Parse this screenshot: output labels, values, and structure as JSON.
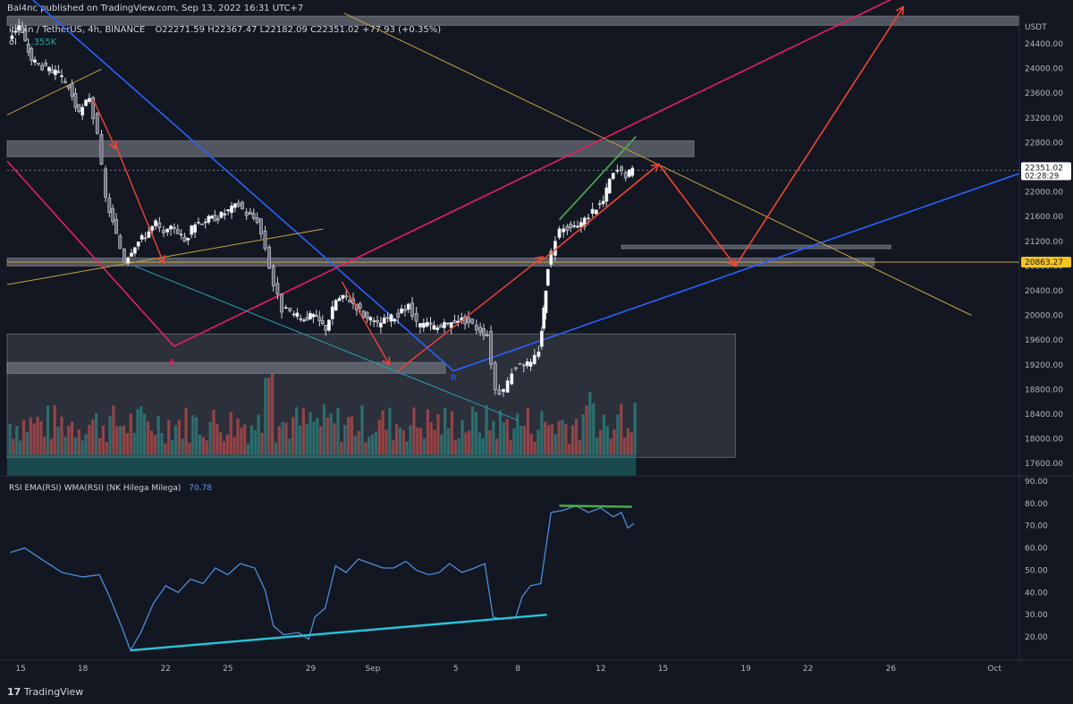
{
  "header": {
    "published_by": "Bal4nc published on TradingView.com, Sep 13, 2022 16:31 UTC+7"
  },
  "legend": {
    "symbol": "itcoin / TetherUS, 4h, BINANCE",
    "ohlc": "O22271.59  H22367.47  L22182.09  C22351.02  +77.93 (+0.35%)",
    "vol_label": "ol",
    "vol_value": "1.355K"
  },
  "rsi_label": {
    "name": "RSI EMA(RSI) WMA(RSI) (NK Hilega Milega)",
    "value": "70.78"
  },
  "footer": {
    "logo": "TradingView"
  },
  "colors": {
    "background": "#131722",
    "up": "#26a69a",
    "down": "#ef5350",
    "blue_trend": "#2962ff",
    "pink_channel": "#e91e63",
    "orange_line": "#c8a13c",
    "red_projection": "#f44336",
    "green_div": "#4caf50",
    "cyan_div": "#26c6da",
    "rsi_line": "#4a8fd8"
  },
  "chart_data": {
    "type": "candlestick",
    "symbol": "BTCUSDT",
    "timeframe": "4h",
    "exchange": "BINANCE",
    "currency_label": "USDT",
    "price_ylim": [
      17400,
      24850
    ],
    "price_ticks": [
      24400,
      24000,
      23600,
      23200,
      22800,
      22400,
      22000,
      21600,
      21200,
      20800,
      20400,
      20000,
      19600,
      19200,
      18800,
      18400,
      18000,
      17600
    ],
    "x_tick_labels": [
      "15",
      "18",
      "22",
      "25",
      "29",
      "Sep",
      "5",
      "8",
      "12",
      "15",
      "19",
      "22",
      "26",
      "Oct"
    ],
    "x_tick_days": [
      15,
      18,
      22,
      25,
      29,
      32,
      36,
      39,
      43,
      46,
      50,
      53,
      57,
      62
    ],
    "x_range_days": [
      14.35,
      63.2
    ],
    "last_price": {
      "value": "22351.02",
      "countdown": "02:28:29"
    },
    "horizontal_line": {
      "value": 20863.27,
      "label": "20863.27"
    },
    "price_path": [
      [
        14.5,
        24500
      ],
      [
        15.0,
        24700
      ],
      [
        15.6,
        24150
      ],
      [
        16.3,
        24000
      ],
      [
        16.9,
        23900
      ],
      [
        17.4,
        23700
      ],
      [
        17.9,
        23250
      ],
      [
        18.4,
        23550
      ],
      [
        18.8,
        22900
      ],
      [
        19.2,
        21900
      ],
      [
        19.7,
        21300
      ],
      [
        20.1,
        20900
      ],
      [
        20.6,
        21150
      ],
      [
        21.1,
        21300
      ],
      [
        21.6,
        21500
      ],
      [
        22.0,
        21300
      ],
      [
        22.5,
        21450
      ],
      [
        23.0,
        21200
      ],
      [
        23.5,
        21500
      ],
      [
        24.0,
        21550
      ],
      [
        24.6,
        21600
      ],
      [
        25.1,
        21700
      ],
      [
        25.6,
        21800
      ],
      [
        26.0,
        21650
      ],
      [
        26.5,
        21550
      ],
      [
        26.9,
        21100
      ],
      [
        27.3,
        20500
      ],
      [
        27.7,
        20100
      ],
      [
        28.1,
        20050
      ],
      [
        28.6,
        19950
      ],
      [
        29.2,
        20000
      ],
      [
        29.8,
        19800
      ],
      [
        30.3,
        20250
      ],
      [
        30.8,
        20300
      ],
      [
        31.3,
        20150
      ],
      [
        31.8,
        19950
      ],
      [
        32.3,
        19850
      ],
      [
        32.8,
        19950
      ],
      [
        33.3,
        20000
      ],
      [
        33.8,
        20150
      ],
      [
        34.2,
        19850
      ],
      [
        34.7,
        19850
      ],
      [
        35.2,
        19800
      ],
      [
        35.7,
        19850
      ],
      [
        36.2,
        19950
      ],
      [
        36.7,
        19900
      ],
      [
        37.1,
        19800
      ],
      [
        37.6,
        19700
      ],
      [
        38.0,
        18800
      ],
      [
        38.4,
        18750
      ],
      [
        38.8,
        19100
      ],
      [
        39.2,
        19250
      ],
      [
        39.7,
        19200
      ],
      [
        40.1,
        19450
      ],
      [
        40.3,
        20100
      ],
      [
        40.5,
        20800
      ],
      [
        40.9,
        21250
      ],
      [
        41.3,
        21450
      ],
      [
        41.8,
        21400
      ],
      [
        42.3,
        21550
      ],
      [
        42.7,
        21700
      ],
      [
        43.2,
        21850
      ],
      [
        43.5,
        22200
      ],
      [
        43.9,
        22350
      ],
      [
        44.3,
        22280
      ],
      [
        44.6,
        22351
      ]
    ],
    "volume": {
      "max": 3.2,
      "bars_description": "volume histogram overlaid at bottom of price pane"
    },
    "zones": [
      {
        "name": "resistance-zone",
        "y": [
          22570,
          22830
        ],
        "x": [
          14.35,
          47.5
        ]
      },
      {
        "name": "support-zone",
        "y": [
          20800,
          20930
        ],
        "x": [
          14.35,
          56.2
        ]
      },
      {
        "name": "thin-zone",
        "y": [
          21080,
          21140
        ],
        "x": [
          44.0,
          57.0
        ]
      },
      {
        "name": "lower-zone",
        "y": [
          19060,
          19240
        ],
        "x": [
          14.35,
          35.5
        ]
      },
      {
        "name": "demand-zone",
        "y": [
          17700,
          19700
        ],
        "x": [
          14.35,
          49.5
        ]
      },
      {
        "name": "top-zone",
        "y": [
          24700,
          24850
        ],
        "x": [
          14.35,
          63.2
        ]
      }
    ],
    "trend_lines": [
      {
        "name": "blue-downtrend",
        "points": [
          [
            15.3,
            25200
          ],
          [
            35.9,
            19100
          ]
        ]
      },
      {
        "name": "blue-uptrend",
        "points": [
          [
            35.9,
            19100
          ],
          [
            63.2,
            22300
          ]
        ]
      },
      {
        "name": "pink-channel-upper",
        "points": [
          [
            22.4,
            19500
          ],
          [
            57.5,
            25200
          ]
        ]
      },
      {
        "name": "pink-channel-lower",
        "points": [
          [
            14.35,
            22500
          ],
          [
            22.4,
            19500
          ]
        ]
      },
      {
        "name": "orange-long-line",
        "points": [
          [
            30.6,
            24900
          ],
          [
            60.9,
            20000
          ]
        ]
      },
      {
        "name": "orange-short-upper",
        "points": [
          [
            14.35,
            23250
          ],
          [
            18.9,
            23990
          ]
        ]
      },
      {
        "name": "orange-short-lower",
        "points": [
          [
            14.35,
            20500
          ],
          [
            29.6,
            21400
          ]
        ]
      },
      {
        "name": "cyan-lower-line",
        "points": [
          [
            20.5,
            20800
          ],
          [
            39.0,
            18300
          ]
        ]
      },
      {
        "name": "green-divergence-price",
        "points": [
          [
            41.0,
            21550
          ],
          [
            44.7,
            22900
          ]
        ]
      }
    ],
    "projection_path": [
      [
        40.2,
        20900
      ],
      [
        45.8,
        22450
      ],
      [
        49.5,
        20800
      ],
      [
        57.6,
        25000
      ]
    ],
    "small_arrows": [
      {
        "from": [
          18.5,
          23500
        ],
        "to": [
          19.6,
          22700
        ]
      },
      {
        "from": [
          19.6,
          22750
        ],
        "to": [
          21.9,
          20850
        ]
      },
      {
        "from": [
          30.5,
          20550
        ],
        "to": [
          32.8,
          19200
        ]
      },
      {
        "from": [
          33.2,
          19100
        ],
        "to": [
          40.2,
          20950
        ]
      }
    ],
    "labels": [
      {
        "text": "B",
        "day": 22.3,
        "value": 19200,
        "color": "#e91e63"
      },
      {
        "text": "B",
        "day": 35.9,
        "value": 18950,
        "color": "#2962ff"
      }
    ],
    "rsi": {
      "ylim": [
        12,
        90
      ],
      "ticks": [
        90,
        80,
        70,
        60,
        50,
        40,
        30,
        20
      ],
      "values": [
        [
          14.5,
          58
        ],
        [
          15.2,
          60
        ],
        [
          16.0,
          55
        ],
        [
          17.0,
          49
        ],
        [
          18.0,
          47
        ],
        [
          18.8,
          48
        ],
        [
          19.3,
          38
        ],
        [
          19.9,
          24
        ],
        [
          20.3,
          14
        ],
        [
          20.8,
          22
        ],
        [
          21.4,
          35
        ],
        [
          22.0,
          43
        ],
        [
          22.6,
          40
        ],
        [
          23.2,
          46
        ],
        [
          23.8,
          44
        ],
        [
          24.4,
          51
        ],
        [
          25.0,
          48
        ],
        [
          25.6,
          53
        ],
        [
          26.3,
          51
        ],
        [
          26.8,
          41
        ],
        [
          27.2,
          25
        ],
        [
          27.7,
          21
        ],
        [
          28.4,
          22
        ],
        [
          28.9,
          19
        ],
        [
          29.2,
          29
        ],
        [
          29.7,
          33
        ],
        [
          30.2,
          52
        ],
        [
          30.7,
          49
        ],
        [
          31.3,
          55
        ],
        [
          31.9,
          53
        ],
        [
          32.5,
          51
        ],
        [
          33.0,
          51
        ],
        [
          33.6,
          54
        ],
        [
          34.1,
          50
        ],
        [
          34.7,
          48
        ],
        [
          35.2,
          49
        ],
        [
          35.7,
          53
        ],
        [
          36.3,
          49
        ],
        [
          36.9,
          51
        ],
        [
          37.4,
          53
        ],
        [
          37.8,
          29
        ],
        [
          38.2,
          28
        ],
        [
          38.9,
          29
        ],
        [
          39.2,
          38
        ],
        [
          39.6,
          43
        ],
        [
          40.1,
          44
        ],
        [
          40.6,
          76
        ],
        [
          41.2,
          77
        ],
        [
          41.8,
          79
        ],
        [
          42.4,
          76
        ],
        [
          43.0,
          78
        ],
        [
          43.6,
          74
        ],
        [
          44.0,
          76
        ],
        [
          44.3,
          69
        ],
        [
          44.6,
          71
        ]
      ],
      "divergence_lines": [
        {
          "name": "cyan-rsi-divergence",
          "points": [
            [
              20.3,
              14
            ],
            [
              40.4,
              30
            ]
          ]
        },
        {
          "name": "green-rsi-divergence",
          "points": [
            [
              41.0,
              79
            ],
            [
              44.5,
              78.5
            ]
          ]
        }
      ]
    }
  }
}
